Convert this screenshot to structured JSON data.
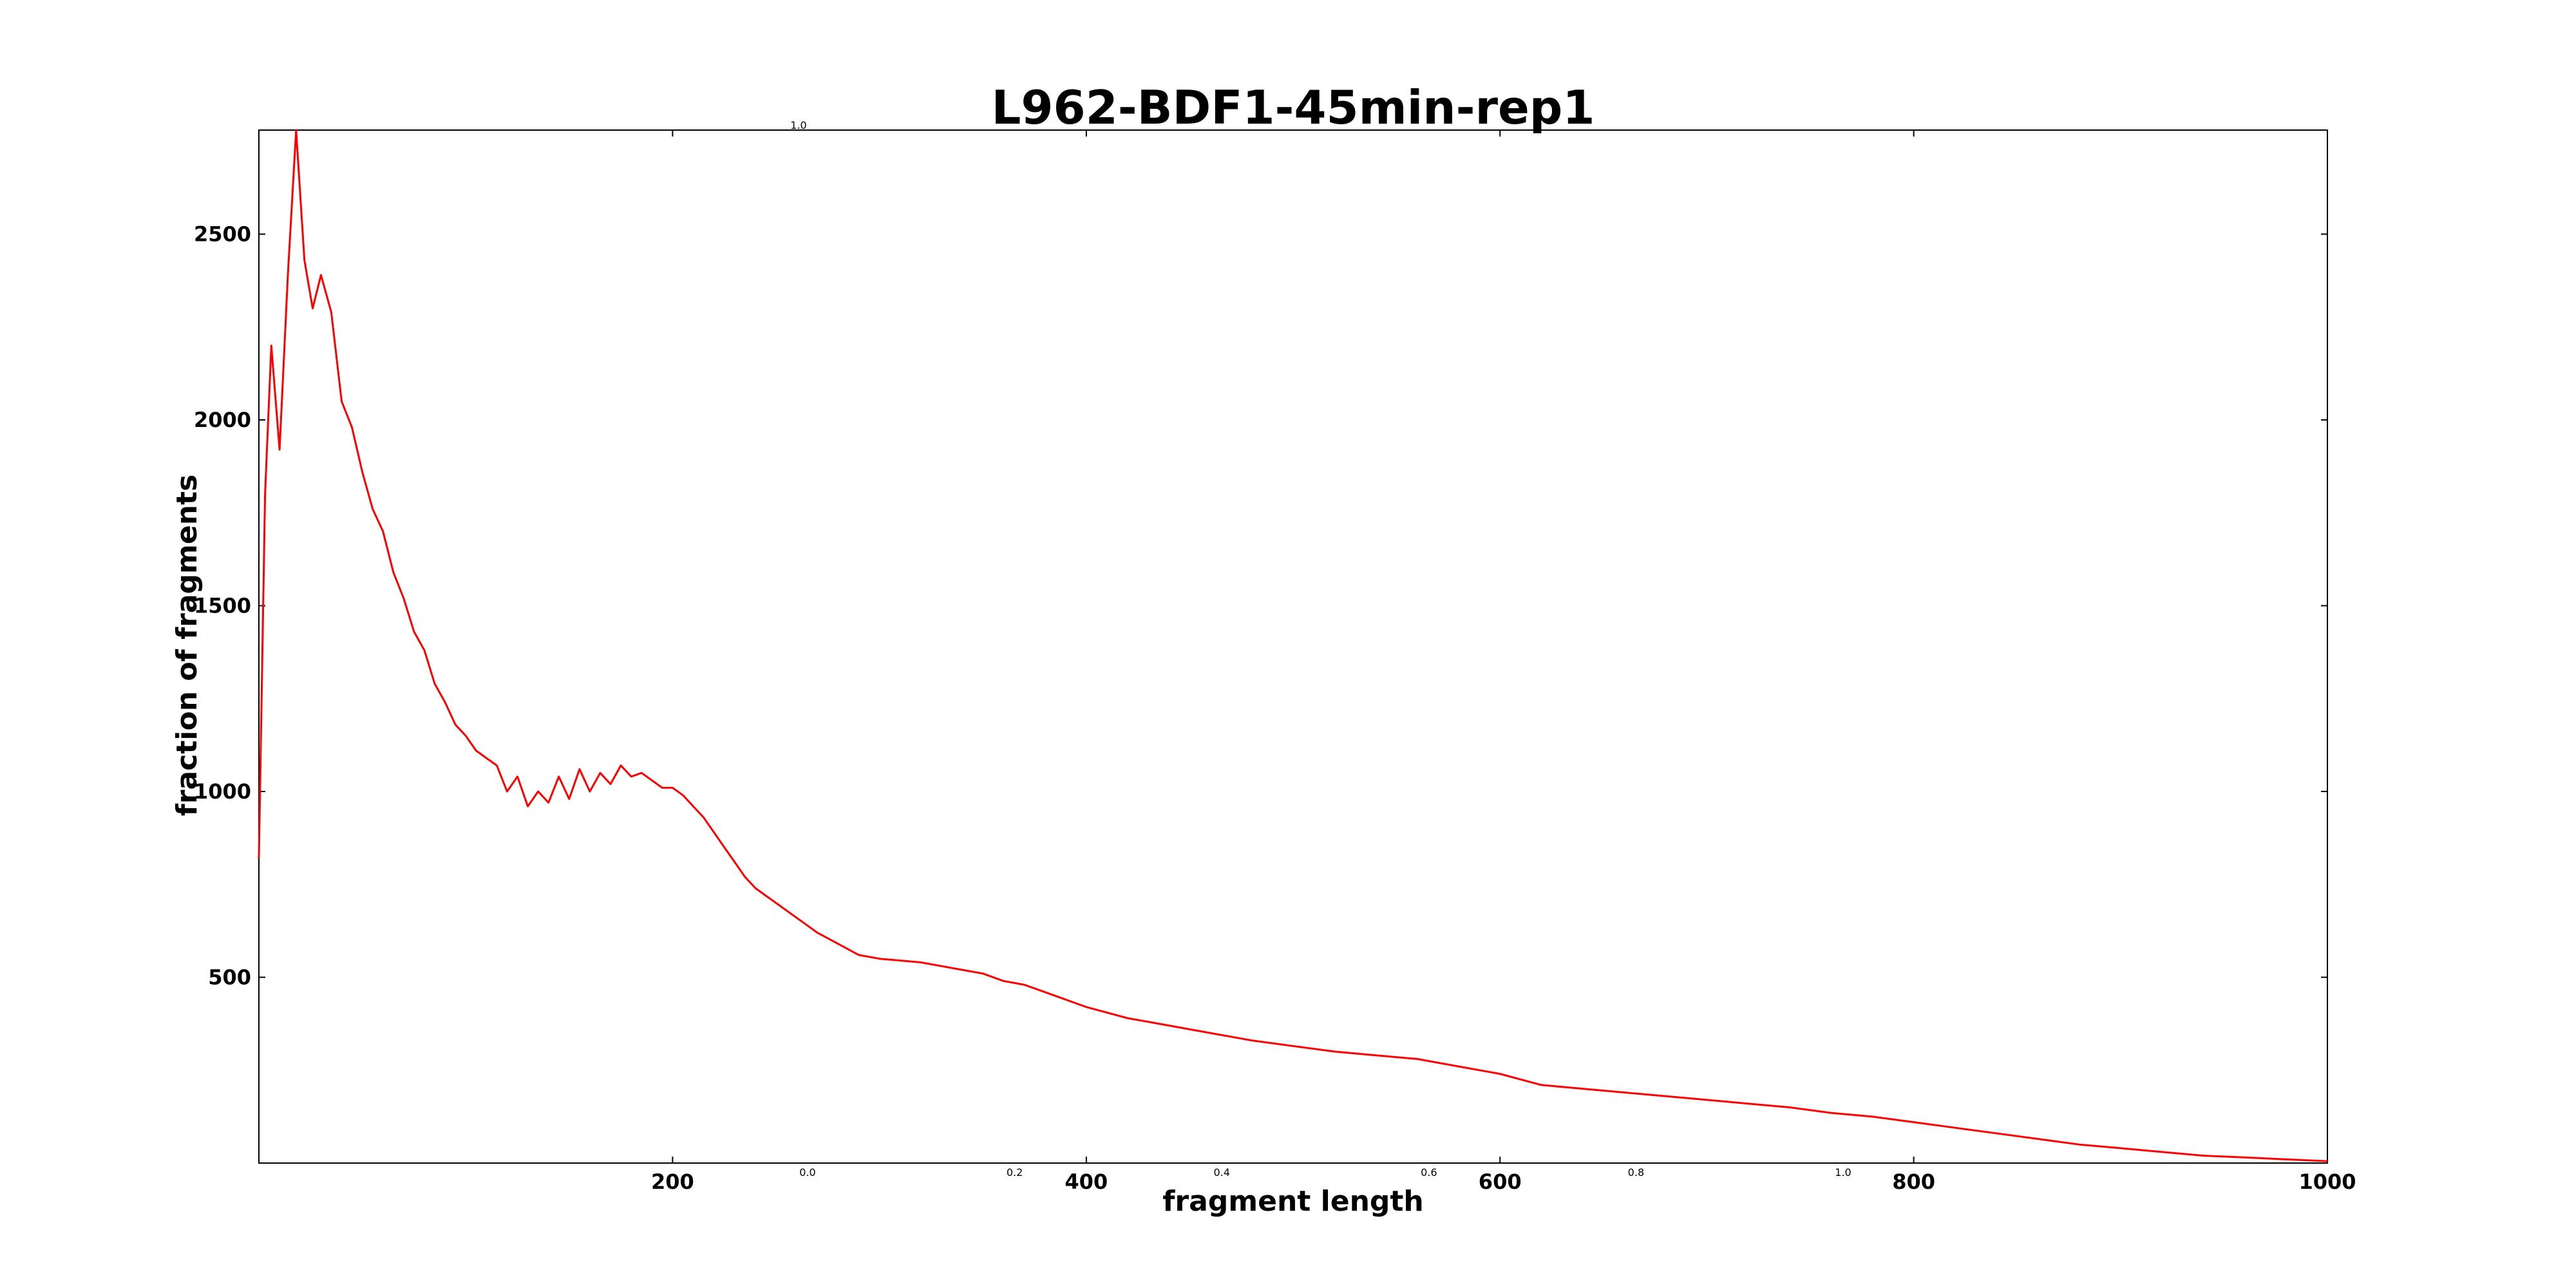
{
  "chart_data": {
    "type": "line",
    "title": "L962-BDF1-45min-rep1",
    "xlabel": "fragment length",
    "ylabel": "fraction of fragments",
    "xlim": [
      0,
      1000
    ],
    "ylim": [
      0,
      2780
    ],
    "grid": false,
    "x_ticks": [
      200,
      400,
      600,
      800,
      1000
    ],
    "y_ticks": [
      500,
      1000,
      1500,
      2000,
      2500
    ],
    "line_color": "#ff0000",
    "series": [
      {
        "x": [
          0,
          3,
          6,
          10,
          14,
          18,
          22,
          26,
          30,
          35,
          40,
          45,
          50,
          55,
          60,
          65,
          70,
          75,
          80,
          85,
          90,
          95,
          100,
          105,
          110,
          115,
          120,
          125,
          130,
          135,
          140,
          145,
          150,
          155,
          160,
          165,
          170,
          175,
          180,
          185,
          190,
          195,
          200,
          205,
          210,
          215,
          220,
          225,
          230,
          235,
          240,
          245,
          250,
          255,
          260,
          265,
          270,
          280,
          290,
          300,
          310,
          320,
          330,
          340,
          350,
          360,
          370,
          380,
          390,
          400,
          420,
          440,
          460,
          480,
          500,
          520,
          540,
          560,
          580,
          600,
          620,
          640,
          660,
          680,
          700,
          720,
          740,
          760,
          780,
          800,
          820,
          840,
          860,
          880,
          900,
          920,
          940,
          960,
          980,
          1000
        ],
        "y": [
          820,
          1800,
          2200,
          1920,
          2390,
          2780,
          2430,
          2300,
          2390,
          2290,
          2050,
          1980,
          1860,
          1760,
          1700,
          1590,
          1520,
          1430,
          1380,
          1290,
          1240,
          1180,
          1150,
          1110,
          1090,
          1070,
          1000,
          1040,
          960,
          1000,
          970,
          1040,
          980,
          1060,
          1000,
          1050,
          1020,
          1070,
          1040,
          1050,
          1030,
          1010,
          1010,
          990,
          960,
          930,
          890,
          850,
          810,
          770,
          740,
          720,
          700,
          680,
          660,
          640,
          620,
          590,
          560,
          550,
          545,
          540,
          530,
          520,
          510,
          490,
          480,
          460,
          440,
          420,
          390,
          370,
          350,
          330,
          315,
          300,
          290,
          280,
          260,
          240,
          210,
          200,
          190,
          180,
          170,
          160,
          150,
          135,
          125,
          110,
          95,
          80,
          65,
          50,
          40,
          30,
          20,
          15,
          10,
          5
        ]
      }
    ],
    "artifact_ticks": {
      "x": [
        "0.0",
        "0.2",
        "0.4",
        "0.6",
        "0.8",
        "1.0"
      ],
      "y_top": "1.0"
    }
  }
}
